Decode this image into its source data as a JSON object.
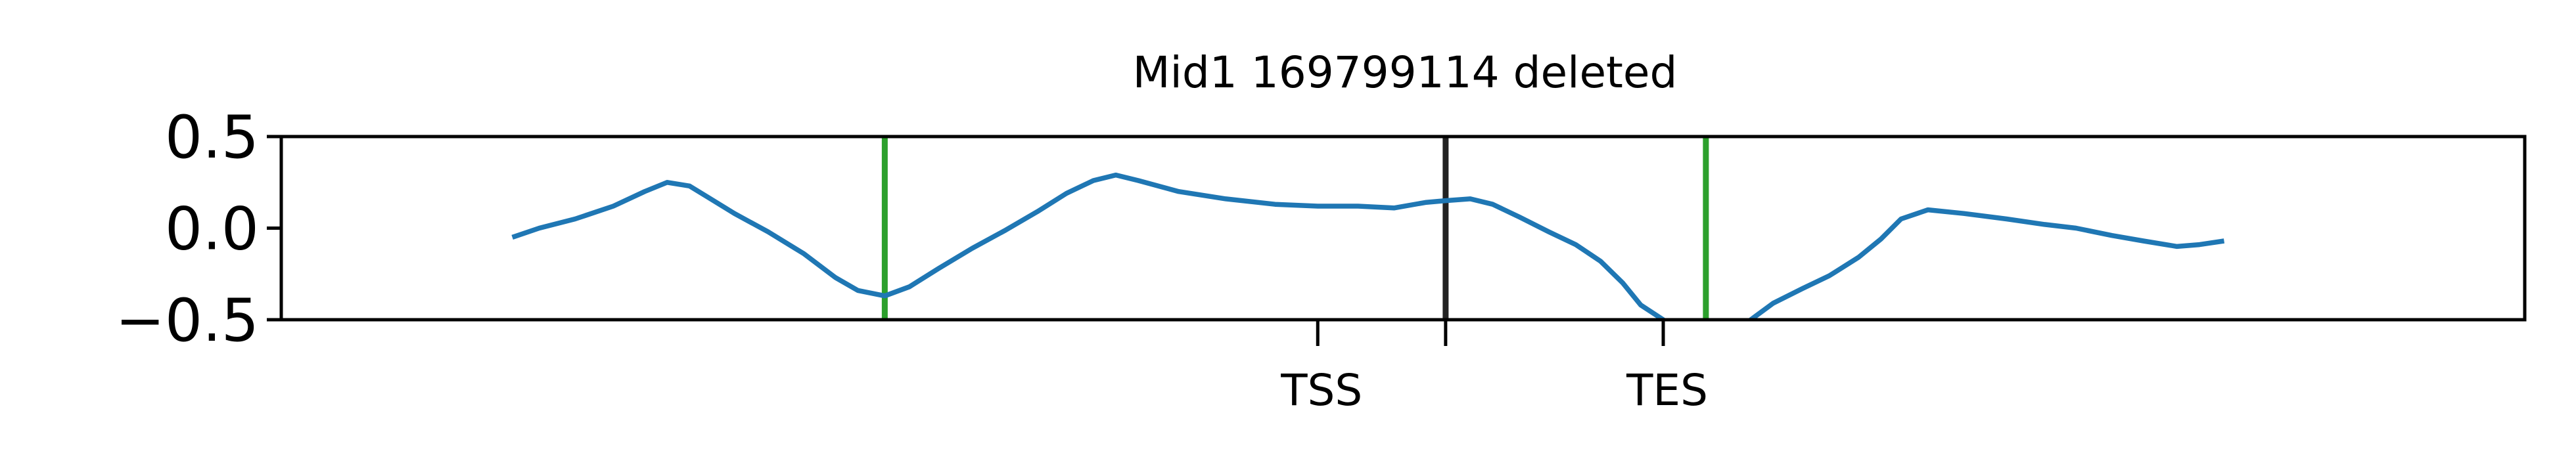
{
  "chart_data": {
    "type": "line",
    "title": "Mid1 169799114 deleted",
    "xlabel": "",
    "ylabel": "",
    "xlim": [
      0,
      100
    ],
    "ylim": [
      -0.5,
      0.5
    ],
    "yticks": [
      0.5,
      0.0,
      -0.5
    ],
    "ytick_labels": [
      "0.5",
      "0.0",
      "−0.5"
    ],
    "xticks": [
      {
        "x": 46.2,
        "label": "TSS"
      },
      {
        "x": 51.9,
        "label": ""
      },
      {
        "x": 61.6,
        "label": "TES"
      }
    ],
    "grid": false,
    "legend": "none",
    "colors": {
      "line": "#1f77b4",
      "marker_green": "#2ca02c",
      "marker_black": "#222222",
      "axis": "#000000"
    },
    "vlines": [
      {
        "x": 26.9,
        "color": "#2ca02c"
      },
      {
        "x": 51.9,
        "color": "#222222"
      },
      {
        "x": 63.5,
        "color": "#2ca02c"
      }
    ],
    "series": [
      {
        "x": [
          10.3,
          11.5,
          13.1,
          14.8,
          16.2,
          17.2,
          18.2,
          19.0,
          20.2,
          21.7,
          23.3,
          24.7,
          25.7,
          26.9,
          28.0,
          29.3,
          30.8,
          32.3,
          33.7,
          35.0,
          36.2,
          37.2,
          38.2,
          40.0,
          42.1,
          44.3,
          46.2,
          48.0,
          49.6,
          51.0,
          51.9,
          53.0,
          54.0,
          55.2,
          56.5,
          57.7,
          58.8,
          59.8,
          60.6,
          61.6,
          61.8
        ],
        "y": [
          -0.05,
          0.0,
          0.05,
          0.12,
          0.2,
          0.25,
          0.23,
          0.17,
          0.08,
          -0.02,
          -0.14,
          -0.27,
          -0.34,
          -0.37,
          -0.32,
          -0.22,
          -0.11,
          -0.01,
          0.09,
          0.19,
          0.26,
          0.29,
          0.26,
          0.2,
          0.16,
          0.13,
          0.12,
          0.12,
          0.11,
          0.14,
          0.15,
          0.16,
          0.13,
          0.06,
          -0.02,
          -0.09,
          -0.18,
          -0.3,
          -0.42,
          -0.5,
          -0.53
        ]
      },
      {
        "x": [
          65.2,
          65.5,
          66.5,
          67.8,
          69.0,
          70.3,
          71.3,
          72.2,
          73.4,
          75.0,
          76.9,
          78.6,
          80.0,
          81.6,
          83.0,
          84.5,
          85.5,
          86.6
        ],
        "y": [
          -0.53,
          -0.5,
          -0.41,
          -0.33,
          -0.26,
          -0.16,
          -0.06,
          0.05,
          0.1,
          0.08,
          0.05,
          0.02,
          0.0,
          -0.04,
          -0.07,
          -0.1,
          -0.09,
          -0.07
        ]
      }
    ]
  }
}
